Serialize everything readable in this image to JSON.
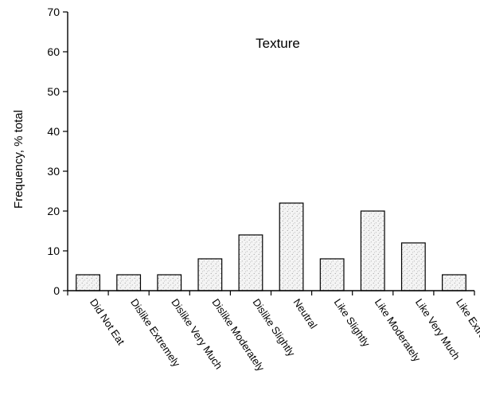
{
  "chart_data": {
    "type": "bar",
    "title": "Texture",
    "ylabel": "Frequency, % total",
    "xlabel": "",
    "ylim": [
      0,
      70
    ],
    "yticks": [
      0,
      10,
      20,
      30,
      40,
      50,
      60,
      70
    ],
    "categories": [
      "Did Not Eat",
      "Dislike Extremely",
      "Dislike Very Much",
      "Dislike Moderately",
      "Dislike Slightly",
      "Neutral",
      "Like Slightly",
      "Like Moderately",
      "Like Very Much",
      "Like Extremely"
    ],
    "values": [
      4,
      4,
      4,
      8,
      14,
      22,
      8,
      20,
      12,
      4
    ],
    "grid": false,
    "legend": "none"
  }
}
